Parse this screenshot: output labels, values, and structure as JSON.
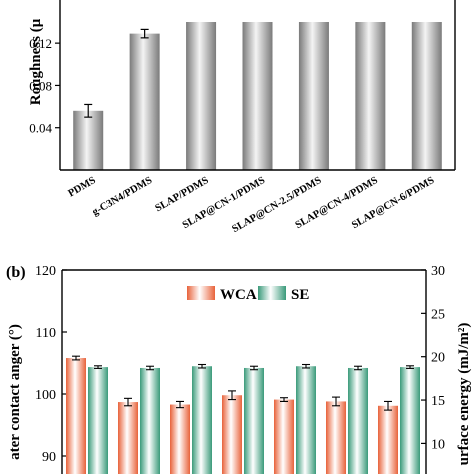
{
  "panel_a": {
    "ylabel": "Roughness (μ",
    "ytick_labels": [
      "0.04",
      "0.08",
      "0.12"
    ],
    "colors": {
      "bar_dark": "#7a7a7a",
      "bar_light": "#f4f4f4"
    }
  },
  "panel_b": {
    "panel_label": "(b)",
    "ylabel_left": "ater contact anger (°)",
    "ylabel_right": "urface energy (mJ/m²)",
    "left_ticks": [
      "90",
      "100",
      "110",
      "120"
    ],
    "right_ticks": [
      "10",
      "15",
      "20",
      "25",
      "30"
    ],
    "colors": {
      "wca": "#e8623a",
      "se": "#3a9a7a"
    }
  },
  "chart_data": [
    {
      "type": "bar",
      "title": "",
      "xlabel": "",
      "ylabel": "Roughness (μ",
      "categories": [
        "PDMS",
        "g-C3N4/PDMS",
        "SLAP/PDMS",
        "SLAP@CN-1/PDMS",
        "SLAP@CN-2.5/PDMS",
        "SLAP@CN-4/PDMS",
        "SLAP@CN-6/PDMS"
      ],
      "values": [
        0.056,
        0.129,
        0.14,
        0.14,
        0.14,
        0.14,
        0.14
      ],
      "errors": [
        0.006,
        0.004,
        0,
        0,
        0,
        0,
        0
      ],
      "ylim": [
        0.0,
        0.14
      ],
      "yticks": [
        0.04,
        0.08,
        0.12
      ],
      "grid": false
    },
    {
      "type": "bar",
      "title": "",
      "xlabel": "",
      "ylabel": "ater contact anger (°)",
      "ylabel_right": "urface energy (mJ/m²)",
      "ylim": [
        80,
        120
      ],
      "ylim_right": [
        8,
        30
      ],
      "legend": "top-center",
      "series": [
        {
          "name": "WCA",
          "axis": "left",
          "values": [
            105.8,
            98.7,
            98.3,
            99.8,
            99.1,
            98.8,
            98.1
          ],
          "errors": [
            0.3,
            0.6,
            0.5,
            0.7,
            0.3,
            0.7,
            0.7
          ]
        },
        {
          "name": "SE",
          "axis": "right",
          "values": [
            18.8,
            18.7,
            18.9,
            18.7,
            18.9,
            18.7,
            18.8
          ],
          "errors": [
            0.15,
            0.2,
            0.2,
            0.2,
            0.2,
            0.2,
            0.15
          ]
        }
      ]
    }
  ]
}
